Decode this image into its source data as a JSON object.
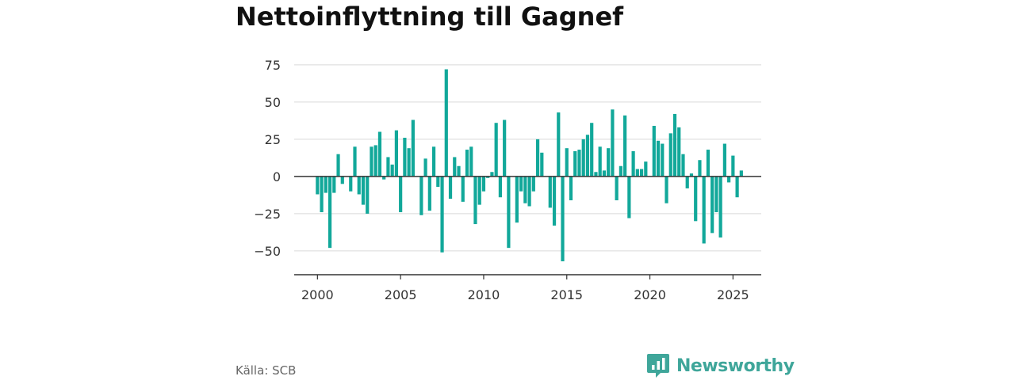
{
  "title": "Nettoinflyttning till Gagnef",
  "source": "Källa: SCB",
  "brand": {
    "name": "Newsworthy",
    "icon": "newsworthy-logo-icon",
    "color": "#3fa69a"
  },
  "colors": {
    "bar": "#12a89a",
    "grid": "#d9d9d9",
    "axis": "#333333",
    "zero": "#333333"
  },
  "chart_data": {
    "type": "bar",
    "title": "Nettoinflyttning till Gagnef",
    "xlabel": "",
    "ylabel": "",
    "grid": true,
    "legend": "none",
    "x_ticks": [
      2000,
      2005,
      2010,
      2015,
      2020,
      2025
    ],
    "x_tick_labels": [
      "2000",
      "2005",
      "2010",
      "2015",
      "2020",
      "2025"
    ],
    "y_ticks": [
      -50,
      -25,
      0,
      25,
      50,
      75
    ],
    "y_tick_labels": [
      "−50",
      "−25",
      "0",
      "25",
      "50",
      "75"
    ],
    "ylim": [
      -66,
      76
    ],
    "xlim": [
      1998.6,
      2026.7
    ],
    "series": [
      {
        "x": [
          "2000-Q1",
          "2000-Q2",
          "2000-Q3",
          "2000-Q4",
          "2001-Q1",
          "2001-Q2",
          "2001-Q3",
          "2001-Q4",
          "2002-Q1",
          "2002-Q2",
          "2002-Q3",
          "2002-Q4",
          "2003-Q1",
          "2003-Q2",
          "2003-Q3",
          "2003-Q4",
          "2004-Q1",
          "2004-Q2",
          "2004-Q3",
          "2004-Q4",
          "2005-Q1",
          "2005-Q2",
          "2005-Q3",
          "2005-Q4",
          "2006-Q1",
          "2006-Q2",
          "2006-Q3",
          "2006-Q4",
          "2007-Q1",
          "2007-Q2",
          "2007-Q3",
          "2007-Q4",
          "2008-Q1",
          "2008-Q2",
          "2008-Q3",
          "2008-Q4",
          "2009-Q1",
          "2009-Q2",
          "2009-Q3",
          "2009-Q4",
          "2010-Q1",
          "2010-Q2",
          "2010-Q3",
          "2010-Q4",
          "2011-Q1",
          "2011-Q2",
          "2011-Q3",
          "2011-Q4",
          "2012-Q1",
          "2012-Q2",
          "2012-Q3",
          "2012-Q4",
          "2013-Q1",
          "2013-Q2",
          "2013-Q3",
          "2013-Q4",
          "2014-Q1",
          "2014-Q2",
          "2014-Q3",
          "2014-Q4",
          "2015-Q1",
          "2015-Q2",
          "2015-Q3",
          "2015-Q4",
          "2016-Q1",
          "2016-Q2",
          "2016-Q3",
          "2016-Q4",
          "2017-Q1",
          "2017-Q2",
          "2017-Q3",
          "2017-Q4",
          "2018-Q1",
          "2018-Q2",
          "2018-Q3",
          "2018-Q4",
          "2019-Q1",
          "2019-Q2",
          "2019-Q3",
          "2019-Q4",
          "2020-Q1",
          "2020-Q2",
          "2020-Q3",
          "2020-Q4",
          "2021-Q1",
          "2021-Q2",
          "2021-Q3",
          "2021-Q4",
          "2022-Q1",
          "2022-Q2",
          "2022-Q3",
          "2022-Q4",
          "2023-Q1",
          "2023-Q2",
          "2023-Q3",
          "2023-Q4",
          "2024-Q1",
          "2024-Q2",
          "2024-Q3",
          "2024-Q4",
          "2025-Q1",
          "2025-Q2",
          "2025-Q3",
          "2025-Q4"
        ],
        "values": [
          -12,
          -24,
          -11,
          -48,
          -11,
          15,
          -5,
          0,
          -10,
          20,
          -12,
          -19,
          -25,
          20,
          21,
          30,
          -2,
          13,
          8,
          31,
          -24,
          26,
          19,
          38,
          0,
          -26,
          12,
          -23,
          20,
          -7,
          -51,
          72,
          -15,
          13,
          7,
          -17,
          18,
          20,
          -32,
          -19,
          -10,
          -1,
          3,
          36,
          -14,
          38,
          -48,
          0,
          -31,
          -10,
          -18,
          -20,
          -10,
          25,
          16,
          0,
          -21,
          -33,
          43,
          -57,
          19,
          -16,
          17,
          18,
          25,
          28,
          36,
          3,
          20,
          4,
          19,
          45,
          -16,
          7,
          41,
          -28,
          17,
          5,
          5,
          10,
          0,
          34,
          24,
          22,
          -18,
          29,
          42,
          33,
          15,
          -8,
          2,
          -30,
          11,
          -45,
          18,
          -38,
          -24,
          -41,
          22,
          -4,
          14,
          -14,
          4,
          0
        ]
      }
    ]
  }
}
